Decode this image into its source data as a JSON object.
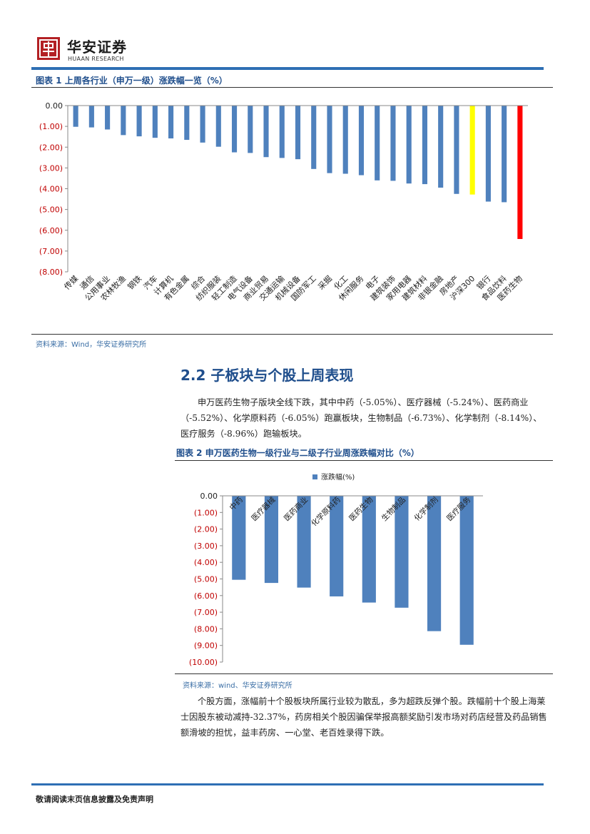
{
  "header": {
    "logo_text": "华安证券",
    "logo_sub": "HUAAN RESEARCH"
  },
  "figure1": {
    "title": "图表 1 上周各行业（申万一级）涨跌幅一览（%）",
    "source": "资料来源：Wind，华安证券研究所"
  },
  "figure2": {
    "title": "图表 2 申万医药生物一级行业与二级子行业周涨跌幅对比（%）",
    "source": "资料来源：wind、华安证券研究所"
  },
  "section": {
    "title": "2.2 子板块与个股上周表现"
  },
  "paragraphs": {
    "p1": "申万医药生物子版块全线下跌，其中中药（-5.05%）、医疗器械（-5.24%）、医药商业（-5.52%）、化学原料药（-6.05%）跑赢板块，生物制品（-6.73%）、化学制剂（-8.14%）、医疗服务（-8.96%）跑输板块。",
    "p2": "个股方面，涨幅前十个股板块所属行业较为散乱，多为超跌反弹个股。跌幅前十个股上海莱士因股东被动减持-32.37%，药房相关个股因骗保举报高额奖励引发市场对药店经营及药品销售额滑坡的担忧，益丰药房、一心堂、老百姓录得下跌。"
  },
  "footer": {
    "text": "敬请阅读末页信息披露及免责声明"
  },
  "chart_data": [
    {
      "type": "bar",
      "categories": [
        "传媒",
        "通信",
        "公用事业",
        "农林牧渔",
        "钢铁",
        "汽车",
        "计算机",
        "有色金属",
        "综合",
        "纺织服装",
        "轻工制造",
        "电气设备",
        "商业贸易",
        "交通运输",
        "机械设备",
        "国防军工",
        "采掘",
        "化工",
        "休闲服务",
        "电子",
        "建筑装饰",
        "家用电器",
        "建筑材料",
        "非银金融",
        "房地产",
        "沪深300",
        "银行",
        "食品饮料",
        "医药生物"
      ],
      "values": [
        -1.02,
        -1.05,
        -1.15,
        -1.42,
        -1.48,
        -1.55,
        -1.58,
        -1.65,
        -1.78,
        -1.98,
        -2.25,
        -2.28,
        -2.48,
        -2.52,
        -2.58,
        -3.05,
        -3.25,
        -3.28,
        -3.35,
        -3.6,
        -3.62,
        -3.75,
        -3.78,
        -3.95,
        -4.25,
        -4.28,
        -4.62,
        -4.65,
        -6.42
      ],
      "highlight": {
        "沪深300": "#ffff00",
        "医药生物": "#ff0000"
      },
      "bar_color": "#4f81bd",
      "ylim": [
        -8,
        0
      ],
      "ytick_labels": [
        "0.00",
        "(1.00)",
        "(2.00)",
        "(3.00)",
        "(4.00)",
        "(5.00)",
        "(6.00)",
        "(7.00)",
        "(8.00)"
      ]
    },
    {
      "type": "bar",
      "categories": [
        "中药",
        "医疗器械",
        "医药商业",
        "化学原料药",
        "医药生物",
        "生物制品",
        "化学制剂",
        "医疗服务"
      ],
      "series": [
        {
          "name": "涨跌幅(%)",
          "values": [
            -5.05,
            -5.24,
            -5.52,
            -6.05,
            -6.42,
            -6.73,
            -8.14,
            -8.96
          ]
        }
      ],
      "bar_color": "#4f81bd",
      "ylim": [
        -10,
        0
      ],
      "legend": "top",
      "ytick_labels": [
        "0.00",
        "(1.00)",
        "(2.00)",
        "(3.00)",
        "(4.00)",
        "(5.00)",
        "(6.00)",
        "(7.00)",
        "(8.00)",
        "(9.00)",
        "(10.00)"
      ]
    }
  ]
}
